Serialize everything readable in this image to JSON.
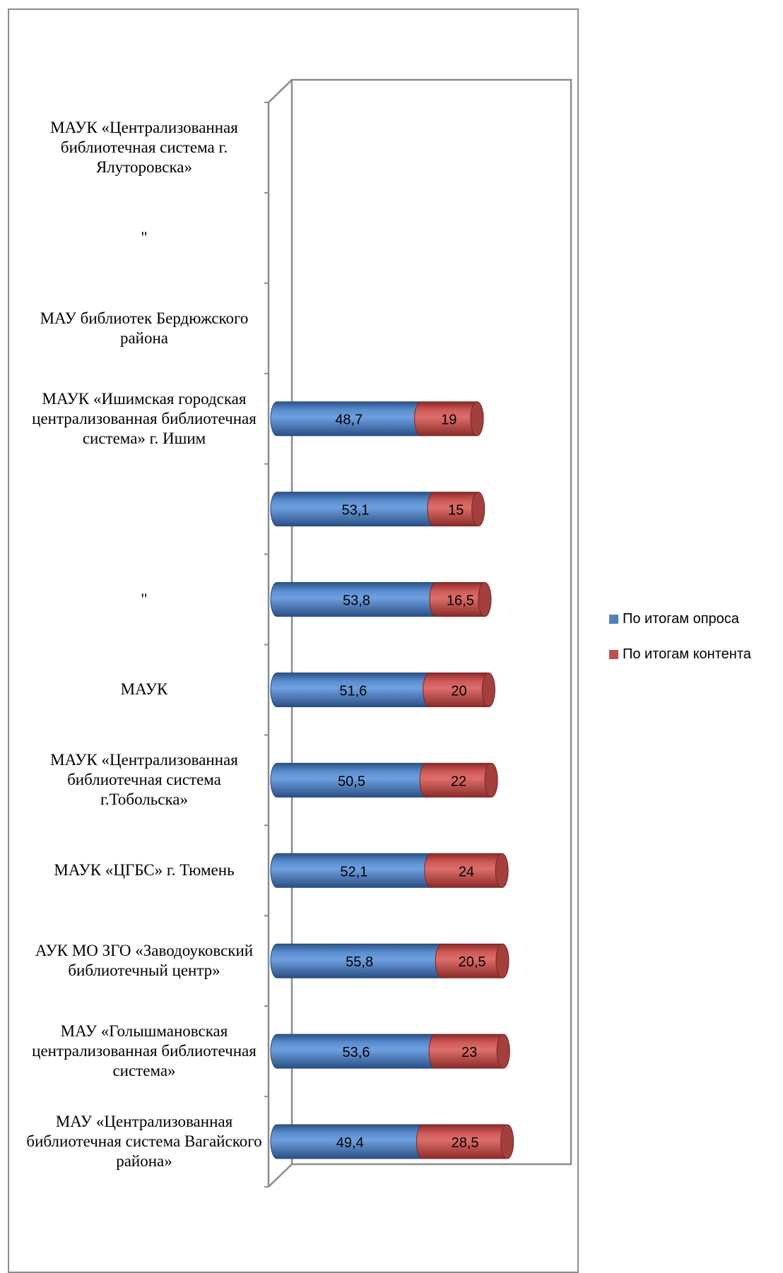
{
  "chart_data": {
    "type": "bar",
    "orientation": "horizontal",
    "stacked": true,
    "three_d": true,
    "categories": [
      "МАУК «Централизованная библиотечная система г. Ялуторовска»",
      "\"",
      "МАУ библиотек Бердюжского района",
      "МАУК «Ишимская городская централизованная библиотечная система» г. Ишим",
      "",
      "\"",
      "МАУК",
      "МАУК «Централизованная библиотечная система г.Тобольска»",
      "МАУК «ЦГБС» г. Тюмень",
      "АУК МО ЗГО «Заводоуковский библиотечный центр»",
      "МАУ «Голышмановская централизованная библиотечная система»",
      "МАУ «Централизованная библиотечная система Вагайского района»"
    ],
    "category_lines": [
      [
        "МАУК «Централизованная",
        "библиотечная система г.",
        "Ялуторовска»"
      ],
      [
        "\""
      ],
      [
        "МАУ библиотек Бердюжского",
        "района"
      ],
      [
        "МАУК «Ишимская городская",
        "централизованная библиотечная",
        "система» г. Ишим"
      ],
      [],
      [
        "\""
      ],
      [
        "МАУК"
      ],
      [
        "МАУК «Централизованная",
        "библиотечная система",
        "г.Тобольска»"
      ],
      [
        "МАУК «ЦГБС» г. Тюмень"
      ],
      [
        "АУК МО ЗГО «Заводоуковский",
        "библиотечный центр»"
      ],
      [
        "МАУ «Голышмановская",
        "централизованная библиотечная",
        "система»"
      ],
      [
        "МАУ «Централизованная",
        "библиотечная система Вагайского",
        "района»"
      ]
    ],
    "series": [
      {
        "name": "По итогам опроса",
        "color": "#4f81bd",
        "values": [
          null,
          null,
          null,
          48.7,
          53.1,
          53.8,
          51.6,
          50.5,
          52.1,
          55.8,
          53.6,
          49.4
        ],
        "labels": [
          "",
          "",
          "",
          "48,7",
          "53,1",
          "53,8",
          "51,6",
          "50,5",
          "52,1",
          "55,8",
          "53,6",
          "49,4"
        ]
      },
      {
        "name": "По итогам контента",
        "color": "#c0504d",
        "values": [
          null,
          null,
          null,
          19,
          15,
          16.5,
          20,
          22,
          24,
          20.5,
          23,
          28.5
        ],
        "labels": [
          "",
          "",
          "",
          "19",
          "15",
          "16,5",
          "20",
          "22",
          "24",
          "20,5",
          "23",
          "28,5"
        ]
      }
    ],
    "legend_position": "right",
    "grid": false
  }
}
